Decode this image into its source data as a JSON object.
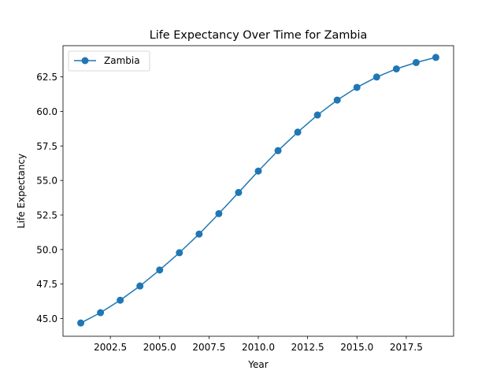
{
  "chart_data": {
    "type": "line",
    "title": "Life Expectancy Over Time for Zambia",
    "xlabel": "Year",
    "ylabel": "Life Expectancy",
    "xlim": [
      2000.1,
      2019.9
    ],
    "ylim": [
      43.72,
      64.76
    ],
    "xticks": [
      2002.5,
      2005.0,
      2007.5,
      2010.0,
      2012.5,
      2015.0,
      2017.5
    ],
    "xtick_labels": [
      "2002.5",
      "2005.0",
      "2007.5",
      "2010.0",
      "2012.5",
      "2015.0",
      "2017.5"
    ],
    "yticks": [
      45.0,
      47.5,
      50.0,
      52.5,
      55.0,
      57.5,
      60.0,
      62.5
    ],
    "ytick_labels": [
      "45.0",
      "47.5",
      "50.0",
      "52.5",
      "55.0",
      "57.5",
      "60.0",
      "62.5"
    ],
    "grid": false,
    "legend_position": "upper-left",
    "series": [
      {
        "name": "Zambia",
        "color": "#1f77b4",
        "marker": "circle",
        "x": [
          2001,
          2002,
          2003,
          2004,
          2005,
          2006,
          2007,
          2008,
          2009,
          2010,
          2011,
          2012,
          2013,
          2014,
          2015,
          2016,
          2017,
          2018,
          2019
        ],
        "y": [
          44.68,
          45.43,
          46.33,
          47.36,
          48.52,
          49.77,
          51.12,
          52.6,
          54.13,
          55.68,
          57.16,
          58.5,
          59.74,
          60.82,
          61.74,
          62.49,
          63.08,
          63.54,
          63.91
        ]
      }
    ]
  }
}
